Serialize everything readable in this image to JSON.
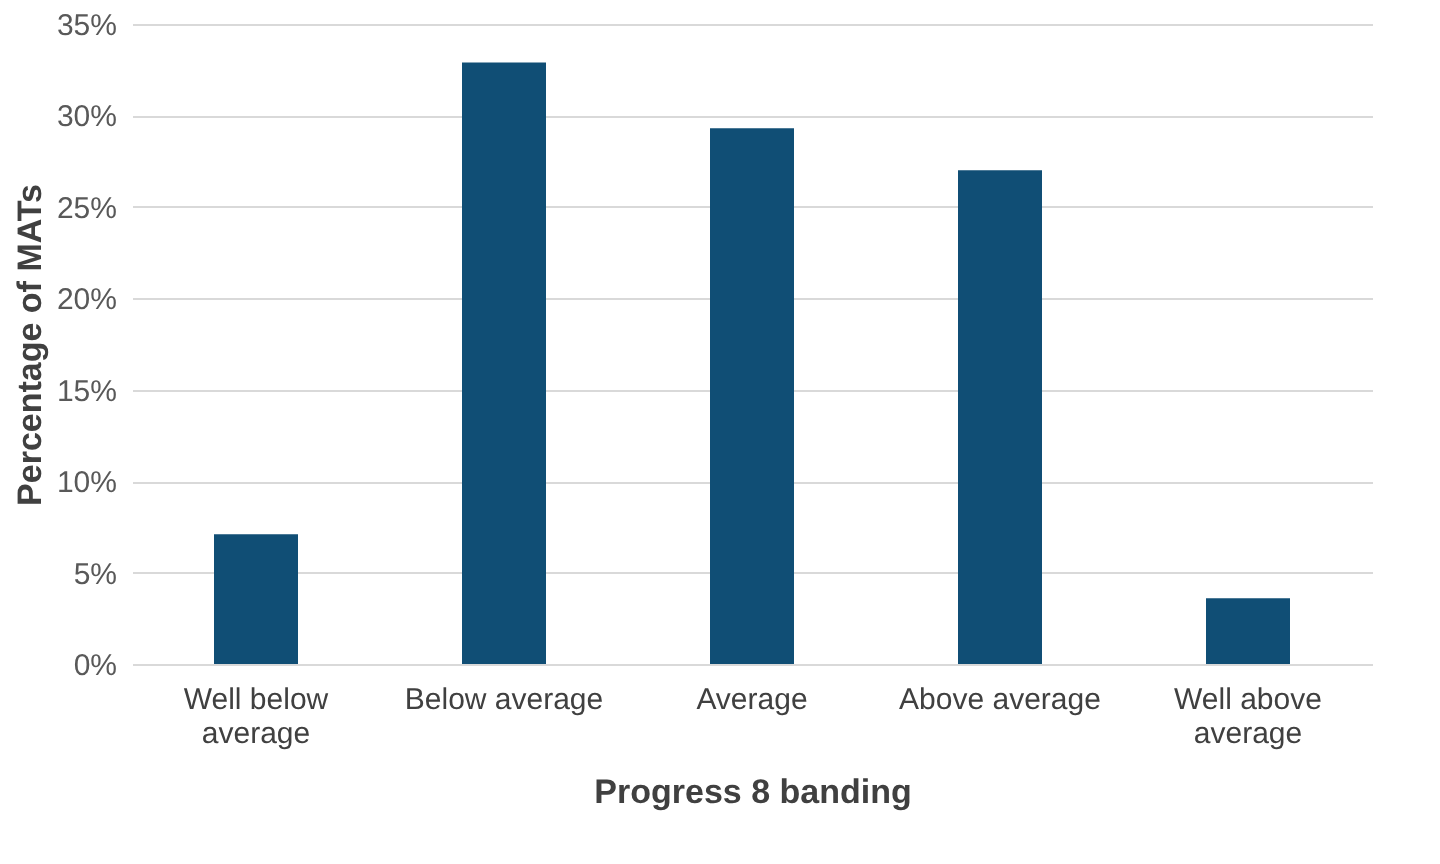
{
  "chart_data": {
    "type": "bar",
    "xlabel": "Progress 8 banding",
    "ylabel": "Percentage of MATs",
    "categories": [
      "Well below average",
      "Below average",
      "Average",
      "Above average",
      "Well above average"
    ],
    "values": [
      7.1,
      32.9,
      29.3,
      27.0,
      3.6
    ],
    "color": "#104e75",
    "ylim": [
      0,
      35
    ],
    "yticks": [
      {
        "value": 0,
        "label": "0%"
      },
      {
        "value": 5,
        "label": "5%"
      },
      {
        "value": 10,
        "label": "10%"
      },
      {
        "value": 15,
        "label": "15%"
      },
      {
        "value": 20,
        "label": "20%"
      },
      {
        "value": 25,
        "label": "25%"
      },
      {
        "value": 30,
        "label": "30%"
      },
      {
        "value": 35,
        "label": "35%"
      }
    ],
    "grid": "y"
  }
}
